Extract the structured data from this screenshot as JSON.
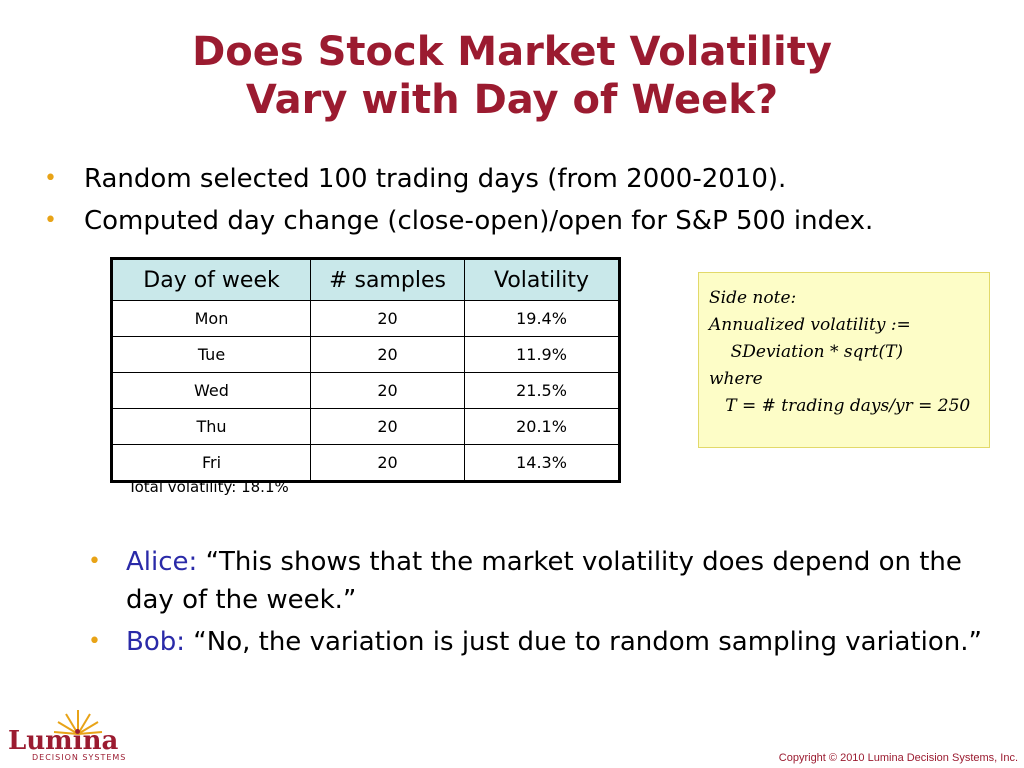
{
  "title": {
    "line1": "Does Stock Market Volatility",
    "line2": "Vary with Day of Week?"
  },
  "bullets_top": [
    "Random selected 100 trading days (from 2000-2010).",
    "Computed day change (close-open)/open for S&P 500 index."
  ],
  "table": {
    "headers": [
      "Day of week",
      "# samples",
      "Volatility"
    ],
    "rows": [
      [
        "Mon",
        "20",
        "19.4%"
      ],
      [
        "Tue",
        "20",
        "11.9%"
      ],
      [
        "Wed",
        "20",
        "21.5%"
      ],
      [
        "Thu",
        "20",
        "20.1%"
      ],
      [
        "Fri",
        "20",
        "14.3%"
      ]
    ],
    "total": "Total volatility: 18.1%"
  },
  "side_note": {
    "lines": [
      "Side note:",
      "",
      "Annualized volatility :=",
      "    SDeviation * sqrt(T)",
      "where",
      "   T = # trading days/yr = 250"
    ]
  },
  "bullets_bottom": [
    {
      "speaker": "Alice:",
      "quote": "“This shows that the market volatility does depend on the day of the week.”"
    },
    {
      "speaker": "Bob:",
      "quote": "“No, the variation is just due to random sampling variation.”"
    }
  ],
  "logo": {
    "name": "Lumina",
    "tagline": "DECISION SYSTEMS"
  },
  "copyright": "Copyright © 2010 Lumina Decision Systems, Inc.",
  "colors": {
    "title": "#9b1b30",
    "bullet": "#e8a317",
    "speaker": "#2a2aa8",
    "table_header": "#c9e8ea",
    "note_bg": "#fdfdc7"
  }
}
